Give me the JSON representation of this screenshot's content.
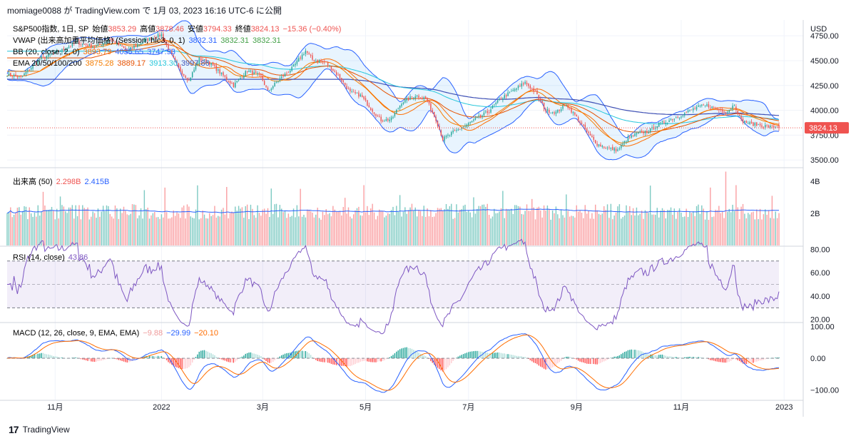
{
  "header": {
    "title": "momiage0088 が TradingView.com で 1月 03, 2023 16:16 UTC-6 に公開"
  },
  "footer": {
    "brand": "TradingView",
    "logo": "tradingview-logo-icon"
  },
  "colors": {
    "up": "#26a69a",
    "down": "#ef5350",
    "vwap": "#2962ff",
    "bb": "#2962ff",
    "bb_fill": "#2196f3",
    "ema20": "#f57c00",
    "ema50": "#e65100",
    "ema100": "#26c6da",
    "ema200": "#3f51b5",
    "rsi": "#7e57c2",
    "macd": "#2962ff",
    "signal": "#ff6d00",
    "vol_ma": "#2962ff"
  },
  "chart_data": [
    {
      "type": "candlestick",
      "title": "S&P500指数, 1日, SP",
      "ohlc": {
        "open_label": "始値",
        "open": "3853.29",
        "high_label": "高値",
        "high": "3878.46",
        "low_label": "安値",
        "low": "3794.33",
        "close_label": "終値",
        "close": "3824.13",
        "change": "−15.36 (−0.40%)"
      },
      "currency": "USD",
      "last_price": "3824.13",
      "y_ticks": [
        "4750.00",
        "4500.00",
        "4250.00",
        "4000.00",
        "3750.00",
        "3500.00"
      ],
      "y_tick_values": [
        4750,
        4500,
        4250,
        4000,
        3750,
        3500
      ],
      "ylim": [
        3430,
        4880
      ],
      "x_ticks": [
        "11月",
        "2022",
        "3月",
        "5月",
        "7月",
        "9月",
        "11月",
        "2023"
      ],
      "x_tick_days": [
        28,
        90,
        149,
        209,
        269,
        332,
        393,
        453
      ],
      "close_anchors": [
        [
          0,
          4360
        ],
        [
          8,
          4330
        ],
        [
          20,
          4530
        ],
        [
          28,
          4570
        ],
        [
          40,
          4680
        ],
        [
          52,
          4640
        ],
        [
          60,
          4720
        ],
        [
          70,
          4600
        ],
        [
          80,
          4700
        ],
        [
          90,
          4760
        ],
        [
          95,
          4580
        ],
        [
          100,
          4420
        ],
        [
          106,
          4300
        ],
        [
          112,
          4520
        ],
        [
          118,
          4480
        ],
        [
          124,
          4380
        ],
        [
          132,
          4250
        ],
        [
          140,
          4400
        ],
        [
          148,
          4340
        ],
        [
          152,
          4190
        ],
        [
          158,
          4300
        ],
        [
          166,
          4420
        ],
        [
          174,
          4600
        ],
        [
          178,
          4510
        ],
        [
          186,
          4480
        ],
        [
          194,
          4330
        ],
        [
          200,
          4180
        ],
        [
          206,
          4150
        ],
        [
          212,
          4020
        ],
        [
          218,
          3900
        ],
        [
          224,
          3910
        ],
        [
          230,
          4080
        ],
        [
          238,
          4150
        ],
        [
          244,
          4120
        ],
        [
          250,
          3910
        ],
        [
          254,
          3710
        ],
        [
          260,
          3780
        ],
        [
          266,
          3830
        ],
        [
          272,
          3900
        ],
        [
          280,
          3980
        ],
        [
          288,
          4120
        ],
        [
          296,
          4210
        ],
        [
          302,
          4280
        ],
        [
          308,
          4180
        ],
        [
          314,
          4000
        ],
        [
          320,
          3980
        ],
        [
          326,
          4060
        ],
        [
          332,
          3930
        ],
        [
          338,
          3780
        ],
        [
          344,
          3660
        ],
        [
          350,
          3620
        ],
        [
          356,
          3600
        ],
        [
          362,
          3720
        ],
        [
          368,
          3770
        ],
        [
          374,
          3790
        ],
        [
          380,
          3860
        ],
        [
          386,
          3900
        ],
        [
          394,
          3960
        ],
        [
          402,
          4030
        ],
        [
          408,
          4050
        ],
        [
          414,
          4010
        ],
        [
          420,
          3990
        ],
        [
          424,
          4060
        ],
        [
          428,
          3900
        ],
        [
          434,
          3860
        ],
        [
          440,
          3850
        ],
        [
          446,
          3830
        ],
        [
          450,
          3840
        ]
      ],
      "indicators": {
        "vwap": {
          "label": "VWAP (出来高加重平均価格) (Session, hlc3, 0, 1)",
          "values": [
            "3832.31",
            "3832.31",
            "3832.31"
          ]
        },
        "bb": {
          "label": "BB (20, close, 2, 0)",
          "values": [
            "3893.79",
            "4035.65",
            "3747.93"
          ]
        },
        "ema": {
          "label": "EMA 20/50/100/200",
          "values": [
            "3875.28",
            "3889.17",
            "3913.30",
            "3997.86"
          ]
        }
      }
    },
    {
      "type": "bar",
      "title": "出来高 (50)",
      "values_text": [
        "2.298B",
        "2.415B"
      ],
      "y_ticks": [
        "4B",
        "2B"
      ],
      "y_tick_values": [
        4,
        2
      ],
      "ylim": [
        0,
        4.8
      ]
    },
    {
      "type": "line",
      "title": "RSI (14, close)",
      "value_text": "43.86",
      "y_ticks": [
        "80.00",
        "60.00",
        "40.00",
        "20.00"
      ],
      "y_tick_values": [
        80,
        60,
        40,
        20
      ],
      "bands": [
        70,
        50,
        30
      ],
      "ylim": [
        18,
        82
      ]
    },
    {
      "type": "line",
      "title": "MACD (12, 26, close, 9, EMA, EMA)",
      "values_text": [
        "−9.88",
        "−29.99",
        "−20.10"
      ],
      "y_ticks": [
        "100.00",
        "0.00",
        "−100.00"
      ],
      "y_tick_values": [
        100,
        0,
        -100
      ],
      "ylim": [
        -130,
        110
      ]
    }
  ]
}
